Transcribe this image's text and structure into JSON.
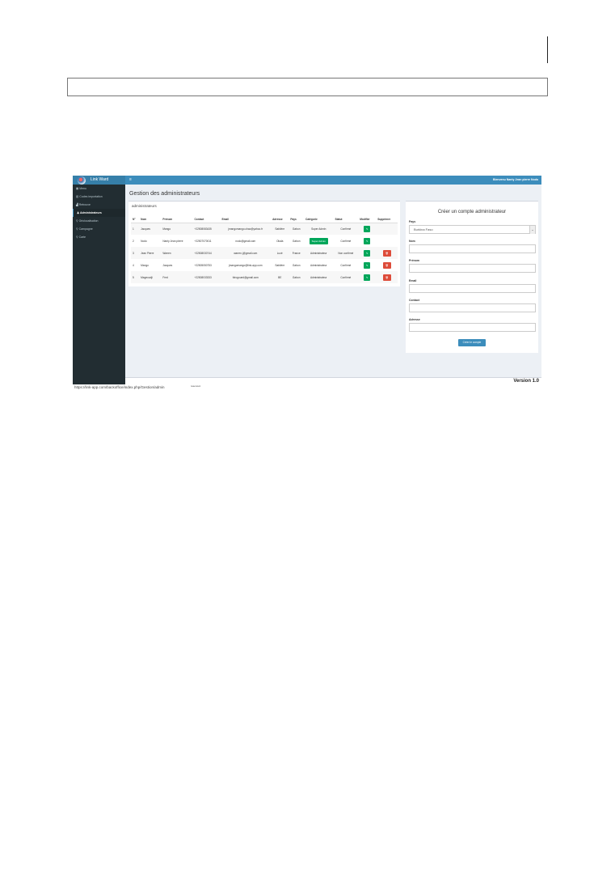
{
  "app": {
    "brand": "Link Ward",
    "welcome": "Bienvenu Nanty Jean pierre Nodo",
    "version": "Version 1.0"
  },
  "sidebar": {
    "items": [
      {
        "label": "Menu",
        "icon": "dashboard-icon"
      },
      {
        "label": "Codes importation",
        "icon": "barcode-icon"
      },
      {
        "label": "Retrouve",
        "icon": "bar-chart-icon"
      },
      {
        "label": "Administrateurs",
        "icon": "user-icon",
        "active": true
      },
      {
        "label": "Géolocalisation",
        "icon": "map-marker-icon"
      },
      {
        "label": "Campagne",
        "icon": "map-marker-icon"
      },
      {
        "label": "Carte",
        "icon": "map-marker-icon"
      }
    ]
  },
  "page": {
    "title": "Gestion des administrateurs"
  },
  "table": {
    "title": "administrateurs",
    "headers": [
      "N°",
      "Nom",
      "Prénom",
      "Contact",
      "Email",
      "Adresse",
      "Pays",
      "Catégorie",
      "Statut",
      "Modifier",
      "Supprimer"
    ],
    "rows": [
      {
        "n": "1",
        "nom": "Jacques",
        "prenom": "Mango",
        "contact": "+22508083435",
        "email": "jmangomango.chao@yahoo.fr",
        "adresse": "Sablière",
        "pays": "Gabon",
        "categorie": "Super Admin",
        "statut": "Confirmé"
      },
      {
        "n": "2",
        "nom": "Nodo",
        "prenom": "Nanty Jean pierre",
        "contact": "+22507070011",
        "email": "nodo@gmail.com",
        "adresse": "Okala",
        "pays": "Gabon",
        "categorie": "Super Admin",
        "statut": "Confirmé"
      },
      {
        "n": "3",
        "nom": "Jean Pierre",
        "prenom": "Warren",
        "contact": "+22508030744",
        "email": "warren.j@gmail.com",
        "adresse": "Lucé",
        "pays": "France",
        "categorie": "Administrateur",
        "statut": "Non confirmé"
      },
      {
        "n": "4",
        "nom": "Mango",
        "prenom": "Jacques",
        "contact": "+22505050753",
        "email": "jmangomango@link-app.com",
        "adresse": "Sablière",
        "pays": "Gabon",
        "categorie": "Administrateur",
        "statut": "Confirmé"
      },
      {
        "n": "5",
        "nom": "Mageoudji",
        "prenom": "Fred",
        "contact": "+22508033333",
        "email": "fdrogoued@gmail.com",
        "adresse": "BE",
        "pays": "Gabon",
        "categorie": "Administrateur",
        "statut": "Confirmé"
      }
    ],
    "edit_icon": "edit-icon",
    "delete_icon": "trash-icon"
  },
  "form": {
    "title": "Créer un compte administrateur",
    "pays_label": "Pays",
    "pays_value": "Burkina Faso",
    "nom_label": "Nom",
    "prenom_label": "Prénom",
    "email_label": "Email",
    "contact_label": "Contact",
    "adresse_label": "Adresse",
    "submit": "Créer le compte"
  },
  "status": {
    "url": "https://link-app.com/backoffice/index.php/Gestion/admin",
    "reserved": "reserved."
  },
  "colors": {
    "header": "#3c8dbc",
    "sidebar": "#222d32",
    "success": "#00a65a",
    "danger": "#dd4b39"
  }
}
